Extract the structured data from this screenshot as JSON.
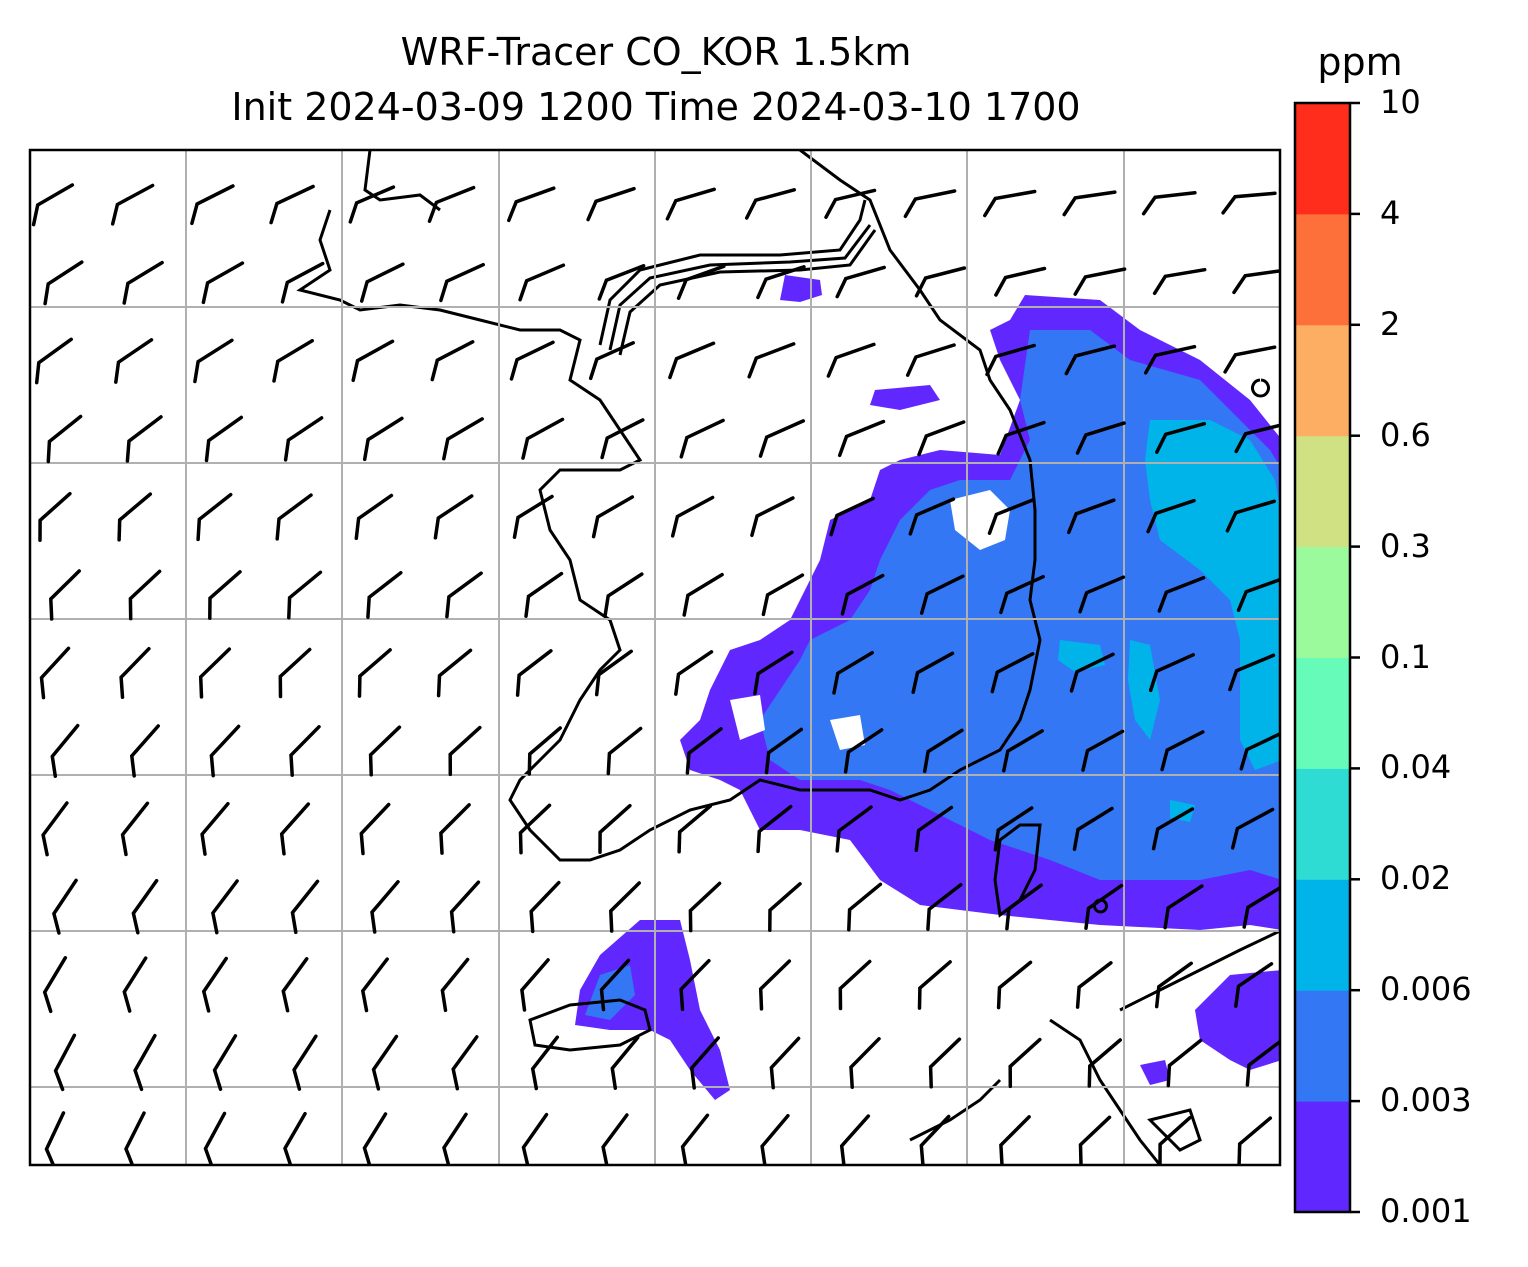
{
  "title": {
    "line1": "WRF-Tracer CO_KOR 1.5km",
    "line2": "Init 2024-03-09 1200 Time 2024-03-10 1700"
  },
  "colorbar": {
    "unit": "ppm",
    "levels": [
      "0.001",
      "0.003",
      "0.006",
      "0.02",
      "0.04",
      "0.1",
      "0.3",
      "0.6",
      "2",
      "4",
      "10"
    ],
    "colors": [
      "#6127ff",
      "#3477f4",
      "#00b4ea",
      "#2edcd4",
      "#66fbb8",
      "#9afa9c",
      "#cfe182",
      "#feae62",
      "#fe7039",
      "#ff2d1c"
    ]
  },
  "map": {
    "gridlines": true,
    "features": [
      "coastline-icon",
      "wind-barb-icon",
      "tracer-concentration-fill"
    ],
    "tracer_levels_present": [
      "0.001",
      "0.003",
      "0.006"
    ]
  }
}
